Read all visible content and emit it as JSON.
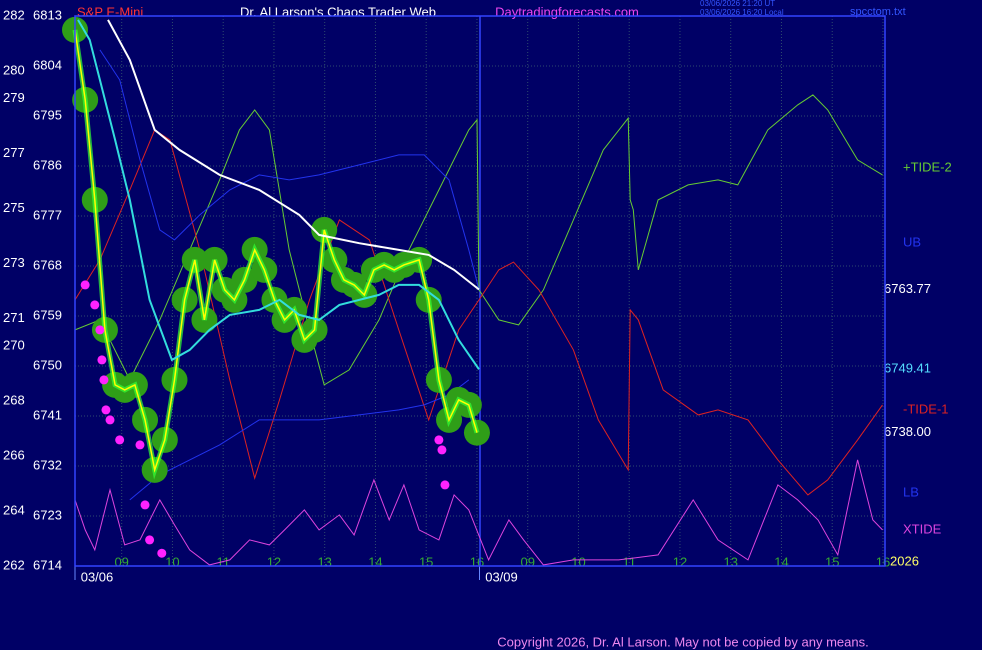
{
  "chart_data": {
    "type": "line",
    "symbol": "S&P E-Mini",
    "title": "Dr. Al Larson's Chaos Trader Web",
    "site": "Daytradingforecasts.com",
    "timestamps": [
      "03/06/2026 21:20 UT",
      "03/06/2026 16:20 Local"
    ],
    "file": "spcctom.txt",
    "copyright": "Copyright 2026, Dr. Al Larson. May not be copied by any means.",
    "year_label": "2026",
    "grid": true,
    "xlim": [
      8.08,
      24.04
    ],
    "xticks": [
      {
        "value": 9,
        "label": "09"
      },
      10,
      11,
      12,
      13,
      14,
      15,
      16,
      {
        "value": 17,
        "label": "09"
      },
      {
        "value": 18,
        "label": "10"
      },
      {
        "value": 19,
        "label": "11"
      },
      {
        "value": 20,
        "label": "12"
      },
      {
        "value": 21,
        "label": "13"
      },
      {
        "value": 22,
        "label": "14"
      },
      {
        "value": 23,
        "label": "15"
      },
      {
        "value": 24,
        "label": "16"
      }
    ],
    "date_ticks": [
      {
        "value": 8.08,
        "label": "03/06"
      },
      {
        "value": 16.05,
        "label": "03/09"
      }
    ],
    "ylim": [
      6714,
      6813
    ],
    "yticks": [
      6714,
      6723,
      6732,
      6741,
      6750,
      6759,
      6768,
      6777,
      6786,
      6795,
      6804,
      6813
    ],
    "y2lim": [
      262,
      282
    ],
    "y2ticks": [
      262,
      264,
      266,
      268,
      270,
      271,
      273,
      275,
      277,
      279,
      280,
      282
    ],
    "series": [
      {
        "name": "+TIDE-2",
        "color": "#66cc33",
        "style": "line",
        "x": [
          8.08,
          8.57,
          9.16,
          9.75,
          10.34,
          10.93,
          11.32,
          11.62,
          11.91,
          12.3,
          12.7,
          12.99,
          13.48,
          14.07,
          14.66,
          15.25,
          15.84,
          16.0,
          16.04,
          16.43,
          16.82,
          17.31,
          17.9,
          18.49,
          18.98,
          19.02,
          19.08,
          19.18,
          19.57,
          20.16,
          20.75,
          21.14,
          21.73,
          22.32,
          22.62,
          22.91,
          23.5,
          23.99
        ],
        "values": [
          6756.5,
          6758.3,
          6747.5,
          6758.3,
          6770.9,
          6783.5,
          6792.5,
          6796.1,
          6792.5,
          6770.9,
          6756.5,
          6746.6,
          6749.3,
          6758.3,
          6770.9,
          6781.7,
          6792.5,
          6794.3,
          6763.7,
          6758.3,
          6757.4,
          6763.7,
          6776.3,
          6788.9,
          6794.6,
          6779.9,
          6778.1,
          6767.3,
          6779.9,
          6782.6,
          6783.5,
          6782.6,
          6792.5,
          6797.0,
          6798.8,
          6796.1,
          6787.1,
          6784.4
        ]
      },
      {
        "name": "-TIDE-1",
        "color": "#dd2222",
        "style": "line",
        "x": [
          8.08,
          8.57,
          9.16,
          9.65,
          9.95,
          10.54,
          11.13,
          11.62,
          12.11,
          12.7,
          13.29,
          13.88,
          14.46,
          15.05,
          15.64,
          16.04,
          16.43,
          16.72,
          17.22,
          17.9,
          18.39,
          18.98,
          19.02,
          19.18,
          19.67,
          20.36,
          20.75,
          21.34,
          21.93,
          22.52,
          22.91,
          23.5,
          23.99
        ],
        "values": [
          6761.9,
          6769.1,
          6781.7,
          6792.5,
          6790.7,
          6770.9,
          6747.5,
          6729.8,
          6743.9,
          6761.9,
          6776.3,
          6772.7,
          6756.5,
          6740.3,
          6756.5,
          6761.9,
          6767.3,
          6768.7,
          6763.7,
          6752.9,
          6740.3,
          6731.3,
          6760.1,
          6758.3,
          6745.7,
          6741.2,
          6742.1,
          6740.3,
          6733.1,
          6726.8,
          6729.5,
          6736.7,
          6743.0
        ]
      },
      {
        "name": "XTIDE",
        "color": "#dd44dd",
        "style": "line",
        "x": [
          8.08,
          8.28,
          8.47,
          8.77,
          9.06,
          9.36,
          9.75,
          10.04,
          10.34,
          10.73,
          11.13,
          11.52,
          11.91,
          12.21,
          12.6,
          12.89,
          13.29,
          13.58,
          13.97,
          14.27,
          14.56,
          14.86,
          15.25,
          15.55,
          15.84,
          16.23,
          16.63,
          16.92,
          17.31,
          17.9,
          18.79,
          19.57,
          20.26,
          20.75,
          21.34,
          21.93,
          22.32,
          22.72,
          23.11,
          23.5,
          23.8,
          23.99
        ],
        "values": [
          6725.9,
          6720.5,
          6716.9,
          6727.7,
          6717.8,
          6718.7,
          6725.9,
          6721.4,
          6716.9,
          6714.2,
          6715.1,
          6718.7,
          6717.8,
          6720.5,
          6724.1,
          6720.5,
          6723.2,
          6719.6,
          6729.5,
          6722.3,
          6728.6,
          6720.5,
          6718.7,
          6726.8,
          6724.1,
          6715.1,
          6722.3,
          6718.7,
          6714.2,
          6715.1,
          6715.1,
          6716.0,
          6725.9,
          6718.7,
          6715.1,
          6728.6,
          6725.9,
          6722.3,
          6716.0,
          6733.1,
          6722.3,
          6720.5
        ]
      },
      {
        "name": "UB",
        "color": "#2233ee",
        "style": "line",
        "x": [
          8.57,
          8.96,
          9.36,
          9.75,
          10.04,
          10.54,
          11.13,
          11.71,
          12.3,
          12.89,
          13.68,
          14.46,
          14.96,
          15.45,
          15.84,
          16.04
        ],
        "values": [
          6806.9,
          6801.5,
          6787.1,
          6774.5,
          6772.7,
          6777.2,
          6781.7,
          6784.4,
          6783.5,
          6784.4,
          6786.2,
          6788.0,
          6788.0,
          6783.5,
          6770.9,
          6763.7
        ]
      },
      {
        "name": "LB",
        "color": "#2233ee",
        "style": "line",
        "x": [
          9.16,
          9.75,
          10.34,
          10.93,
          11.71,
          12.3,
          12.89,
          13.68,
          14.46,
          14.96,
          15.45,
          15.84
        ],
        "values": [
          6725.9,
          6730.4,
          6733.1,
          6735.8,
          6740.3,
          6740.3,
          6740.3,
          6741.2,
          6742.1,
          6743.0,
          6744.8,
          6747.5
        ]
      },
      {
        "color": "#ffff00",
        "style": "price",
        "x": [
          8.08,
          8.28,
          8.47,
          8.67,
          8.87,
          9.06,
          9.26,
          9.46,
          9.65,
          9.85,
          10.04,
          10.24,
          10.44,
          10.63,
          10.83,
          11.03,
          11.22,
          11.42,
          11.62,
          11.81,
          12.01,
          12.21,
          12.4,
          12.6,
          12.8,
          12.99,
          13.19,
          13.38,
          13.58,
          13.78,
          13.97,
          14.17,
          14.37,
          14.56,
          14.86,
          15.05,
          15.25,
          15.45,
          15.64,
          15.84,
          16.0
        ],
        "values": [
          6810.5,
          6797.9,
          6779.9,
          6756.5,
          6746.6,
          6745.7,
          6746.6,
          6740.3,
          6731.3,
          6736.7,
          6747.5,
          6761.9,
          6769.1,
          6758.3,
          6769.1,
          6763.7,
          6761.9,
          6765.5,
          6770.9,
          6767.3,
          6761.9,
          6758.3,
          6760.1,
          6754.7,
          6756.5,
          6774.5,
          6769.1,
          6765.5,
          6764.6,
          6762.8,
          6767.3,
          6768.2,
          6767.3,
          6768.2,
          6769.1,
          6761.9,
          6747.5,
          6740.3,
          6743.9,
          6743.0,
          6738.0
        ],
        "end": {
          "value": 6738,
          "label": "6738.00"
        }
      },
      {
        "color": "#33dddd",
        "style": "line",
        "x": [
          8.14,
          8.37,
          8.57,
          8.87,
          9.16,
          9.55,
          9.99,
          10.34,
          10.73,
          11.13,
          11.71,
          12.11,
          12.5,
          12.89,
          13.29,
          13.68,
          14.07,
          14.46,
          14.86,
          15.25,
          15.64,
          16.04
        ],
        "values": [
          6812.3,
          6808.7,
          6801.5,
          6790.7,
          6779.9,
          6761.9,
          6751.1,
          6752.9,
          6756.5,
          6759.2,
          6760.1,
          6761.9,
          6759.2,
          6758.3,
          6761.0,
          6761.9,
          6762.8,
          6764.6,
          6764.6,
          6761.9,
          6754.7,
          6749.41
        ],
        "end": 6749.41
      },
      {
        "color": "#ffffff",
        "style": "line",
        "x": [
          8.73,
          9.16,
          9.65,
          10.14,
          10.93,
          11.71,
          12.5,
          12.89,
          13.68,
          14.46,
          15.05,
          15.55,
          16.04
        ],
        "values": [
          6812.3,
          6805.1,
          6792.5,
          6788.9,
          6784.4,
          6781.7,
          6777.2,
          6773.6,
          6772.1,
          6770.9,
          6770.0,
          6767.3,
          6763.77
        ],
        "end": 6763.77
      },
      {
        "color": "#ff22ff",
        "style": "dots",
        "x": [
          8.28,
          8.47,
          8.57,
          8.61,
          8.65,
          8.69,
          8.77,
          8.96,
          9.36,
          9.46,
          9.55,
          9.79,
          15.25,
          15.31,
          15.37
        ],
        "values": [
          6764.6,
          6761.0,
          6756.5,
          6751.1,
          6747.5,
          6742.1,
          6740.3,
          6736.7,
          6735.8,
          6725.0,
          6718.7,
          6716.3,
          6736.7,
          6734.9,
          6728.6
        ]
      }
    ]
  }
}
